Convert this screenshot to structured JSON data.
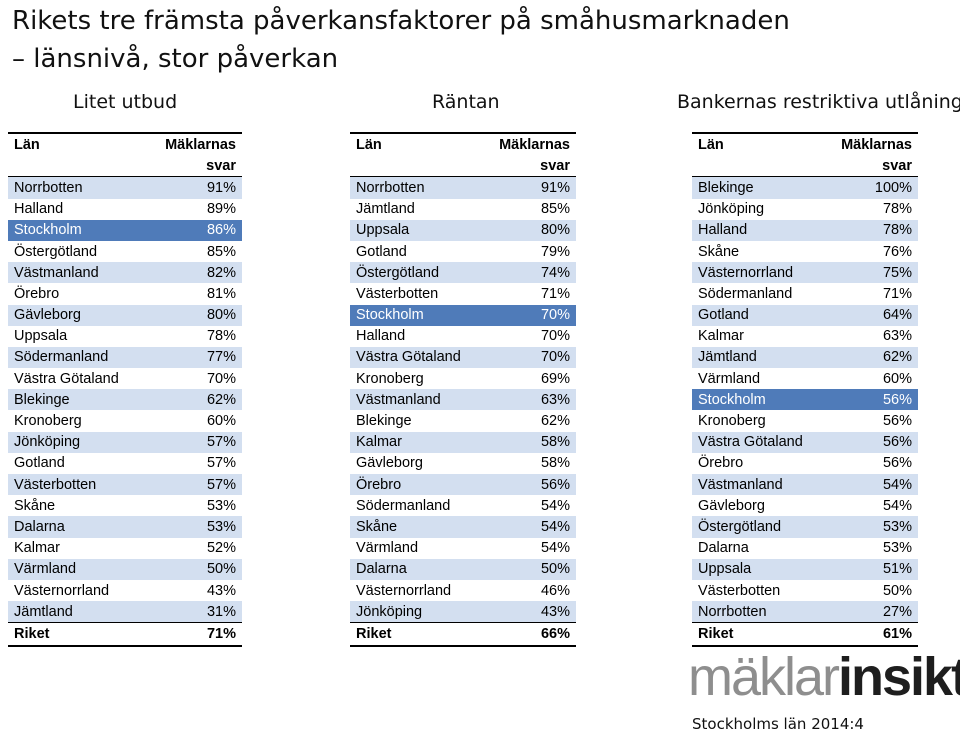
{
  "title": {
    "line1": "Rikets tre främsta påverkansfaktorer på småhusmarknaden",
    "line2": "– länsnivå, stor påverkan"
  },
  "columns": [
    {
      "heading": "Litet utbud",
      "col_lan": "Län",
      "col_value_line1": "Mäklarnas",
      "col_value_line2": "svar",
      "rows": [
        {
          "lan": "Norrbotten",
          "value": "91%"
        },
        {
          "lan": "Halland",
          "value": "89%"
        },
        {
          "lan": "Stockholm",
          "value": "86%",
          "highlight": true
        },
        {
          "lan": "Östergötland",
          "value": "85%"
        },
        {
          "lan": "Västmanland",
          "value": "82%"
        },
        {
          "lan": "Örebro",
          "value": "81%"
        },
        {
          "lan": "Gävleborg",
          "value": "80%"
        },
        {
          "lan": "Uppsala",
          "value": "78%"
        },
        {
          "lan": "Södermanland",
          "value": "77%"
        },
        {
          "lan": "Västra Götaland",
          "value": "70%"
        },
        {
          "lan": "Blekinge",
          "value": "62%"
        },
        {
          "lan": "Kronoberg",
          "value": "60%"
        },
        {
          "lan": "Jönköping",
          "value": "57%"
        },
        {
          "lan": "Gotland",
          "value": "57%"
        },
        {
          "lan": "Västerbotten",
          "value": "57%"
        },
        {
          "lan": "Skåne",
          "value": "53%"
        },
        {
          "lan": "Dalarna",
          "value": "53%"
        },
        {
          "lan": "Kalmar",
          "value": "52%"
        },
        {
          "lan": "Värmland",
          "value": "50%"
        },
        {
          "lan": "Västernorrland",
          "value": "43%"
        },
        {
          "lan": "Jämtland",
          "value": "31%"
        }
      ],
      "total_label": "Riket",
      "total_value": "71%"
    },
    {
      "heading": "Räntan",
      "col_lan": "Län",
      "col_value_line1": "Mäklarnas",
      "col_value_line2": "svar",
      "rows": [
        {
          "lan": "Norrbotten",
          "value": "91%"
        },
        {
          "lan": "Jämtland",
          "value": "85%"
        },
        {
          "lan": "Uppsala",
          "value": "80%"
        },
        {
          "lan": "Gotland",
          "value": "79%"
        },
        {
          "lan": "Östergötland",
          "value": "74%"
        },
        {
          "lan": "Västerbotten",
          "value": "71%"
        },
        {
          "lan": "Stockholm",
          "value": "70%",
          "highlight": true
        },
        {
          "lan": "Halland",
          "value": "70%"
        },
        {
          "lan": "Västra Götaland",
          "value": "70%"
        },
        {
          "lan": "Kronoberg",
          "value": "69%"
        },
        {
          "lan": "Västmanland",
          "value": "63%"
        },
        {
          "lan": "Blekinge",
          "value": "62%"
        },
        {
          "lan": "Kalmar",
          "value": "58%"
        },
        {
          "lan": "Gävleborg",
          "value": "58%"
        },
        {
          "lan": "Örebro",
          "value": "56%"
        },
        {
          "lan": "Södermanland",
          "value": "54%"
        },
        {
          "lan": "Skåne",
          "value": "54%"
        },
        {
          "lan": "Värmland",
          "value": "54%"
        },
        {
          "lan": "Dalarna",
          "value": "50%"
        },
        {
          "lan": "Västernorrland",
          "value": "46%"
        },
        {
          "lan": "Jönköping",
          "value": "43%"
        }
      ],
      "total_label": "Riket",
      "total_value": "66%"
    },
    {
      "heading": "Bankernas restriktiva utlåning",
      "col_lan": "Län",
      "col_value_line1": "Mäklarnas",
      "col_value_line2": "svar",
      "rows": [
        {
          "lan": "Blekinge",
          "value": "100%"
        },
        {
          "lan": "Jönköping",
          "value": "78%"
        },
        {
          "lan": "Halland",
          "value": "78%"
        },
        {
          "lan": "Skåne",
          "value": "76%"
        },
        {
          "lan": "Västernorrland",
          "value": "75%"
        },
        {
          "lan": "Södermanland",
          "value": "71%"
        },
        {
          "lan": "Gotland",
          "value": "64%"
        },
        {
          "lan": "Kalmar",
          "value": "63%"
        },
        {
          "lan": "Jämtland",
          "value": "62%"
        },
        {
          "lan": "Värmland",
          "value": "60%"
        },
        {
          "lan": "Stockholm",
          "value": "56%",
          "highlight": true
        },
        {
          "lan": "Kronoberg",
          "value": "56%"
        },
        {
          "lan": "Västra Götaland",
          "value": "56%"
        },
        {
          "lan": "Örebro",
          "value": "56%"
        },
        {
          "lan": "Västmanland",
          "value": "54%"
        },
        {
          "lan": "Gävleborg",
          "value": "54%"
        },
        {
          "lan": "Östergötland",
          "value": "53%"
        },
        {
          "lan": "Dalarna",
          "value": "53%"
        },
        {
          "lan": "Uppsala",
          "value": "51%"
        },
        {
          "lan": "Västerbotten",
          "value": "50%"
        },
        {
          "lan": "Norrbotten",
          "value": "27%"
        }
      ],
      "total_label": "Riket",
      "total_value": "61%"
    }
  ],
  "logo": {
    "part1": "mäklar",
    "part2": "insikt"
  },
  "footnote": "Stockholms län 2014:4",
  "colors": {
    "row_shade": "#d3dff0",
    "highlight": "#4f7bb9",
    "logo_grey": "#8e8e8e",
    "logo_dark": "#1e1e1e"
  }
}
